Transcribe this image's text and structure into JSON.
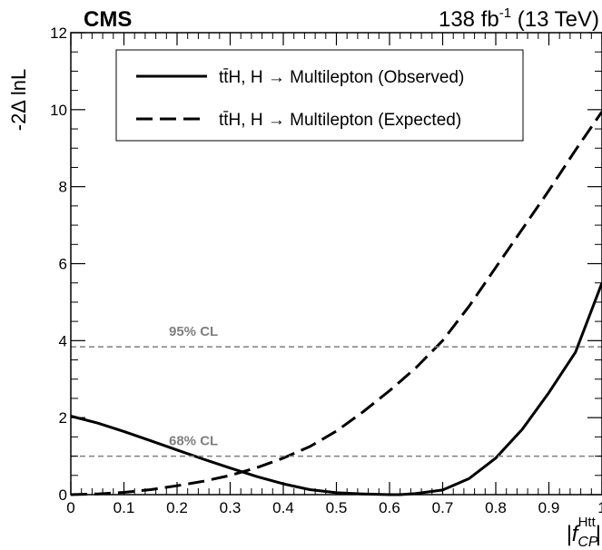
{
  "header": {
    "experiment": "CMS",
    "lumi_value": "138 fb",
    "lumi_exp": "-1",
    "energy": " (13 TeV)"
  },
  "chart_data": {
    "type": "line",
    "ylabel": "-2Δ lnL",
    "xlabel": {
      "prefix": "|f",
      "sub": "CP",
      "sup": "Htt",
      "suffix": "|"
    },
    "xlim": [
      0,
      1
    ],
    "ylim": [
      0,
      12
    ],
    "x_ticks": [
      0,
      0.1,
      0.2,
      0.3,
      0.4,
      0.5,
      0.6,
      0.7,
      0.8,
      0.9,
      1
    ],
    "x_tick_labels": [
      "0",
      "0.1",
      "0.2",
      "0.3",
      "0.4",
      "0.5",
      "0.6",
      "0.7",
      "0.8",
      "0.9",
      "1"
    ],
    "y_ticks": [
      0,
      2,
      4,
      6,
      8,
      10,
      12
    ],
    "y_tick_labels": [
      "0",
      "2",
      "4",
      "6",
      "8",
      "10",
      "12"
    ],
    "grid": false,
    "legend_position": "top-center",
    "legend": [
      {
        "label": "tt̄H, H → Multilepton (Observed)",
        "style": "solid"
      },
      {
        "label": "tt̄H, H → Multilepton (Expected)",
        "style": "dashed"
      }
    ],
    "reference_lines": [
      {
        "label": "95% CL",
        "y": 3.84,
        "color": "#7f7f7f"
      },
      {
        "label": "68% CL",
        "y": 1.0,
        "color": "#7f7f7f"
      }
    ],
    "series": [
      {
        "name": "tt̄H, H → Multilepton (Observed)",
        "style": "solid",
        "x": [
          0,
          0.05,
          0.1,
          0.15,
          0.2,
          0.25,
          0.3,
          0.35,
          0.4,
          0.45,
          0.5,
          0.55,
          0.6,
          0.62,
          0.65,
          0.7,
          0.75,
          0.8,
          0.85,
          0.9,
          0.95,
          1.0
        ],
        "y": [
          2.04,
          1.86,
          1.64,
          1.4,
          1.16,
          0.92,
          0.69,
          0.47,
          0.28,
          0.13,
          0.05,
          0.02,
          0.0,
          0.0,
          0.03,
          0.12,
          0.42,
          0.95,
          1.7,
          2.65,
          3.7,
          5.5
        ]
      },
      {
        "name": "tt̄H, H → Multilepton (Expected)",
        "style": "dashed",
        "x": [
          0,
          0.05,
          0.1,
          0.15,
          0.2,
          0.25,
          0.3,
          0.35,
          0.4,
          0.45,
          0.5,
          0.55,
          0.6,
          0.65,
          0.7,
          0.75,
          0.8,
          0.85,
          0.9,
          0.95,
          1.0
        ],
        "y": [
          0.0,
          0.02,
          0.06,
          0.13,
          0.23,
          0.35,
          0.5,
          0.7,
          0.95,
          1.25,
          1.65,
          2.15,
          2.7,
          3.3,
          4.0,
          4.9,
          5.9,
          6.9,
          7.9,
          8.95,
          9.95
        ]
      }
    ]
  }
}
